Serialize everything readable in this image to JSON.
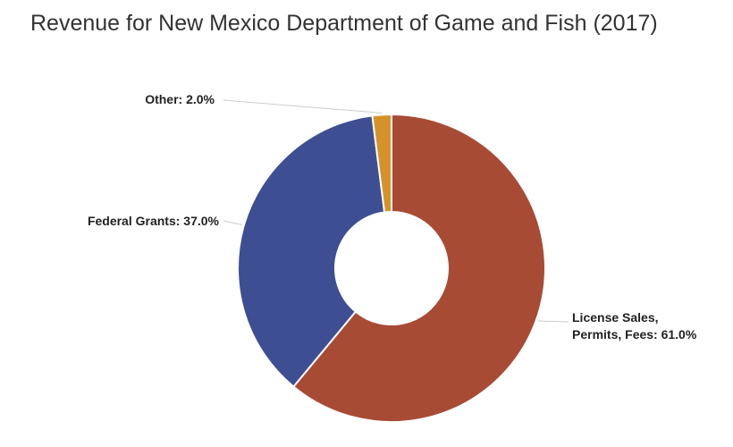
{
  "chart_data": {
    "type": "donut",
    "title": "Revenue for New Mexico Department of Game and Fish (2017)",
    "values": [
      61.0,
      37.0,
      2.0
    ],
    "value_labels": [
      "License Sales, Permits, Fees: 61.0%",
      "Federal Grants: 37.0%",
      "Other: 2.0%"
    ],
    "colors": [
      "#a84b35",
      "#3e4e92",
      "#d6922a"
    ]
  }
}
